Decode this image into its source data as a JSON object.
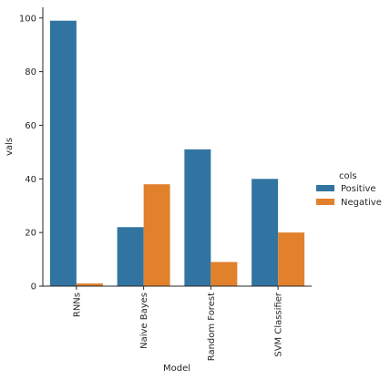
{
  "chart_data": {
    "type": "bar",
    "categories": [
      "RNNs",
      "Naive Bayes",
      "Random Forest",
      "SVM Classifier"
    ],
    "series": [
      {
        "name": "Positive",
        "values": [
          99,
          22,
          51,
          40
        ],
        "color": "#3274a1"
      },
      {
        "name": "Negative",
        "values": [
          1,
          38,
          9,
          20
        ],
        "color": "#e1812c"
      }
    ],
    "xlabel": "Model",
    "ylabel": "vals",
    "ylim": [
      0,
      104
    ],
    "yticks": [
      0,
      20,
      40,
      60,
      80,
      100
    ],
    "grid": false,
    "legend": {
      "title": "cols",
      "position": "right"
    }
  }
}
